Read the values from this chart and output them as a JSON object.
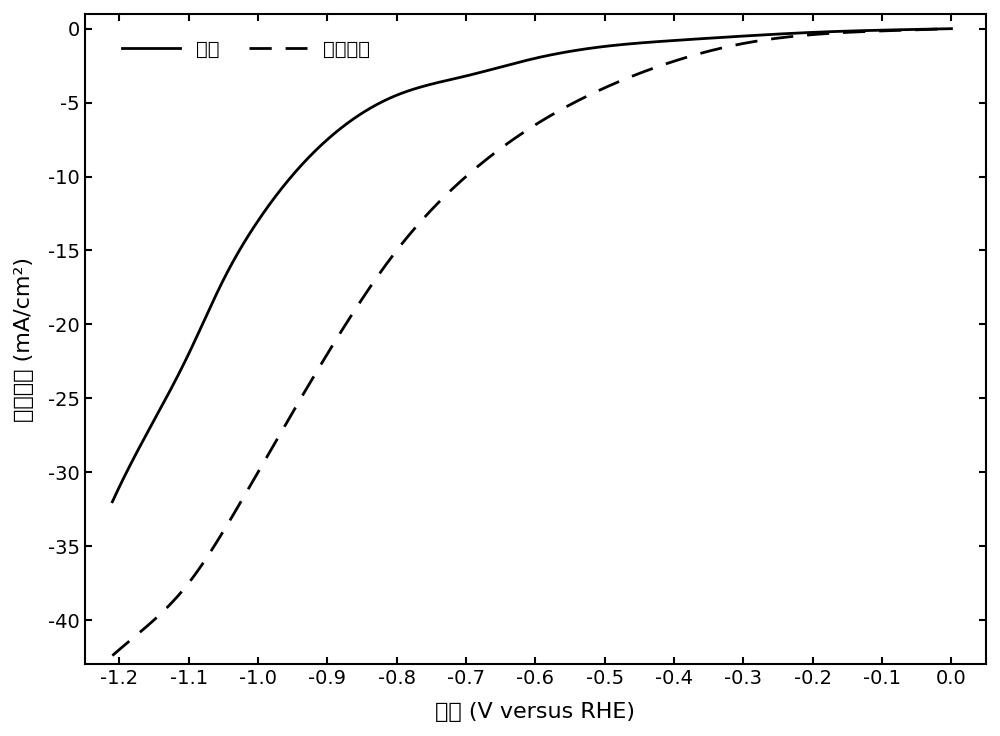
{
  "title": "",
  "xlabel": "电势 (V versus RHE)",
  "ylabel": "电流密度 (mA/cm²)",
  "xlim": [
    -1.25,
    0.05
  ],
  "ylim": [
    -43,
    1
  ],
  "xticks": [
    -1.2,
    -1.1,
    -1.0,
    -0.9,
    -0.8,
    -0.7,
    -0.6,
    -0.5,
    -0.4,
    -0.3,
    -0.2,
    -0.1,
    0.0
  ],
  "yticks": [
    0,
    -5,
    -10,
    -15,
    -20,
    -25,
    -30,
    -35,
    -40
  ],
  "legend_labels": [
    "氯气",
    "二氧化碳"
  ],
  "line_color": "#000000",
  "background_color": "#ffffff",
  "font_size_labels": 16,
  "font_size_ticks": 14,
  "font_size_legend": 14,
  "line_width": 2.0,
  "n2_points_x": [
    0.0,
    -0.1,
    -0.2,
    -0.3,
    -0.4,
    -0.5,
    -0.6,
    -0.7,
    -0.8,
    -0.9,
    -1.0,
    -1.05,
    -1.1,
    -1.15,
    -1.2
  ],
  "n2_points_y": [
    0.0,
    -0.1,
    -0.25,
    -0.5,
    -0.8,
    -1.2,
    -2.0,
    -3.2,
    -4.5,
    -7.5,
    -13.0,
    -17.0,
    -22.0,
    -26.5,
    -31.0
  ],
  "co2_points_x": [
    0.0,
    -0.1,
    -0.2,
    -0.3,
    -0.4,
    -0.5,
    -0.6,
    -0.7,
    -0.8,
    -0.9,
    -1.0,
    -1.05,
    -1.1,
    -1.15,
    -1.2
  ],
  "co2_points_y": [
    0.0,
    -0.15,
    -0.4,
    -1.0,
    -2.2,
    -4.0,
    -6.5,
    -10.0,
    -15.0,
    -22.0,
    -30.0,
    -34.0,
    -37.5,
    -40.0,
    -42.0
  ]
}
